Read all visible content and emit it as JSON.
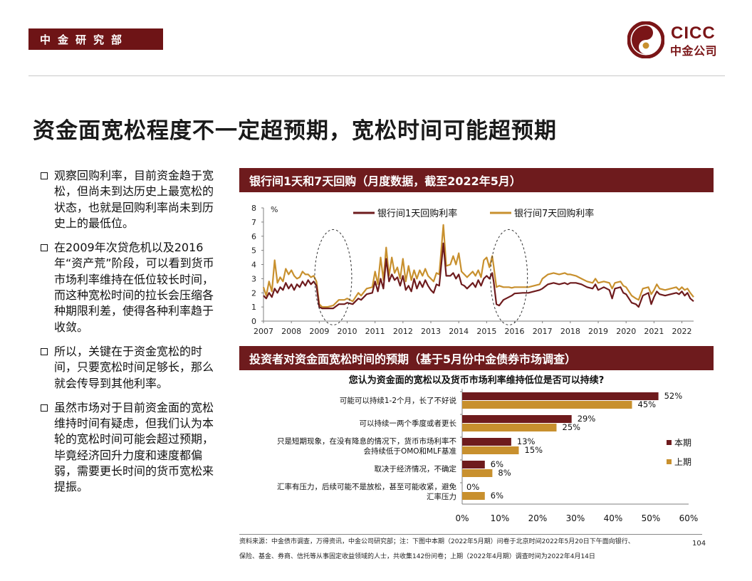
{
  "header": {
    "dept_tag": "中金研究部",
    "logo_en": "CICC",
    "logo_cn": "中金公司"
  },
  "title": "资金面宽松程度不一定超预期，宽松时间可能超预期",
  "bullets": [
    "观察回购利率，目前资金趋于宽松，但尚未到达历史上最宽松的状态，也就是回购利率尚未到历史上的最低位。",
    "在2009年次贷危机以及2016年“资产荒”阶段，可以看到货币市场利率维持在低位较长时间，而这种宽松时间的拉长会压缩各种期限利差，使得各种利率趋于收敛。",
    "所以，关键在于资金宽松的时间，只要宽松时间足够长，那么就会传导到其他利率。",
    "虽然市场对于目前资金面的宽松维持时间有疑虑，但我们认为本轮的宽松时间可能会超过预期，毕竟经济回升力度和速度都偏弱，需要更长时间的货币宽松来提振。"
  ],
  "panel1_title": "银行间1天和7天回购（月度数据，截至2022年5月）",
  "panel2_title": "投资者对资金面宽松时间的预期（基于5月份中金债券市场调查）",
  "chart_data": [
    {
      "type": "line",
      "title": "银行间1天和7天回购（月度数据，截至2022年5月）",
      "ylabel": "%",
      "xlabel": "",
      "ylim": [
        0,
        8
      ],
      "yticks": [
        "0",
        "1",
        "2",
        "3",
        "4",
        "5",
        "6",
        "7",
        "8"
      ],
      "xlim": [
        2007,
        2022.42
      ],
      "xticks": [
        "2007",
        "2008",
        "2009",
        "2010",
        "2011",
        "2012",
        "2013",
        "2014",
        "2015",
        "2016",
        "2017",
        "2018",
        "2019",
        "2020",
        "2021",
        "2022"
      ],
      "legend_position": "top",
      "grid": false,
      "annotations": [
        "dashed ellipse around 2009 low",
        "dashed ellipse around 2016 low"
      ],
      "series": [
        {
          "name": "银行间1天回购利率",
          "color": "#6e1b1d",
          "points": [
            [
              2007.0,
              1.8
            ],
            [
              2007.1,
              1.6
            ],
            [
              2007.2,
              2.0
            ],
            [
              2007.3,
              1.7
            ],
            [
              2007.4,
              2.3
            ],
            [
              2007.5,
              2.0
            ],
            [
              2007.6,
              2.4
            ],
            [
              2007.7,
              2.2
            ],
            [
              2007.8,
              2.7
            ],
            [
              2007.9,
              2.3
            ],
            [
              2008.0,
              2.6
            ],
            [
              2008.1,
              2.2
            ],
            [
              2008.2,
              2.6
            ],
            [
              2008.3,
              2.4
            ],
            [
              2008.4,
              2.8
            ],
            [
              2008.5,
              2.5
            ],
            [
              2008.6,
              2.9
            ],
            [
              2008.7,
              2.6
            ],
            [
              2008.8,
              2.8
            ],
            [
              2008.9,
              2.5
            ],
            [
              2009.0,
              1.0
            ],
            [
              2009.1,
              0.9
            ],
            [
              2009.3,
              0.9
            ],
            [
              2009.5,
              0.9
            ],
            [
              2009.7,
              1.2
            ],
            [
              2009.9,
              1.2
            ],
            [
              2010.0,
              1.3
            ],
            [
              2010.2,
              1.2
            ],
            [
              2010.4,
              1.6
            ],
            [
              2010.5,
              1.5
            ],
            [
              2010.7,
              1.9
            ],
            [
              2010.9,
              2.0
            ],
            [
              2011.0,
              2.8
            ],
            [
              2011.1,
              2.1
            ],
            [
              2011.2,
              3.0
            ],
            [
              2011.3,
              2.3
            ],
            [
              2011.4,
              4.4
            ],
            [
              2011.5,
              2.8
            ],
            [
              2011.6,
              3.3
            ],
            [
              2011.7,
              2.9
            ],
            [
              2011.8,
              3.1
            ],
            [
              2011.9,
              2.5
            ],
            [
              2012.0,
              3.2
            ],
            [
              2012.1,
              2.2
            ],
            [
              2012.2,
              2.5
            ],
            [
              2012.3,
              2.1
            ],
            [
              2012.4,
              3.0
            ],
            [
              2012.5,
              2.3
            ],
            [
              2012.6,
              2.8
            ],
            [
              2012.7,
              2.4
            ],
            [
              2012.8,
              2.9
            ],
            [
              2012.9,
              2.5
            ],
            [
              2013.0,
              2.2
            ],
            [
              2013.1,
              2.0
            ],
            [
              2013.2,
              2.6
            ],
            [
              2013.3,
              2.5
            ],
            [
              2013.45,
              5.5
            ],
            [
              2013.55,
              3.2
            ],
            [
              2013.7,
              3.2
            ],
            [
              2013.8,
              3.4
            ],
            [
              2013.9,
              3.0
            ],
            [
              2014.0,
              3.3
            ],
            [
              2014.1,
              2.6
            ],
            [
              2014.2,
              2.5
            ],
            [
              2014.3,
              2.3
            ],
            [
              2014.5,
              2.7
            ],
            [
              2014.6,
              2.4
            ],
            [
              2014.7,
              2.9
            ],
            [
              2014.8,
              2.5
            ],
            [
              2014.9,
              3.0
            ],
            [
              2015.0,
              3.2
            ],
            [
              2015.1,
              3.0
            ],
            [
              2015.2,
              3.4
            ],
            [
              2015.25,
              2.8
            ],
            [
              2015.35,
              1.2
            ],
            [
              2015.45,
              1.1
            ],
            [
              2015.6,
              1.5
            ],
            [
              2015.8,
              1.7
            ],
            [
              2015.9,
              1.8
            ],
            [
              2016.0,
              1.95
            ],
            [
              2016.3,
              2.0
            ],
            [
              2016.5,
              2.0
            ],
            [
              2016.7,
              2.1
            ],
            [
              2016.9,
              2.2
            ],
            [
              2017.0,
              2.3
            ],
            [
              2017.2,
              2.6
            ],
            [
              2017.4,
              2.7
            ],
            [
              2017.6,
              2.6
            ],
            [
              2017.8,
              2.7
            ],
            [
              2017.9,
              2.6
            ],
            [
              2018.0,
              2.7
            ],
            [
              2018.2,
              2.7
            ],
            [
              2018.4,
              2.6
            ],
            [
              2018.6,
              2.4
            ],
            [
              2018.8,
              2.3
            ],
            [
              2018.9,
              2.6
            ],
            [
              2019.0,
              2.2
            ],
            [
              2019.2,
              2.4
            ],
            [
              2019.4,
              2.2
            ],
            [
              2019.5,
              1.6
            ],
            [
              2019.6,
              2.3
            ],
            [
              2019.8,
              2.4
            ],
            [
              2019.9,
              2.0
            ],
            [
              2020.0,
              1.9
            ],
            [
              2020.2,
              1.3
            ],
            [
              2020.35,
              1.2
            ],
            [
              2020.45,
              1.0
            ],
            [
              2020.6,
              1.8
            ],
            [
              2020.8,
              2.0
            ],
            [
              2020.9,
              1.2
            ],
            [
              2021.0,
              1.7
            ],
            [
              2021.1,
              2.1
            ],
            [
              2021.2,
              1.9
            ],
            [
              2021.4,
              1.8
            ],
            [
              2021.6,
              1.9
            ],
            [
              2021.8,
              2.0
            ],
            [
              2021.9,
              1.9
            ],
            [
              2022.0,
              2.1
            ],
            [
              2022.1,
              1.8
            ],
            [
              2022.2,
              2.0
            ],
            [
              2022.3,
              1.6
            ],
            [
              2022.42,
              1.4
            ]
          ]
        },
        {
          "name": "银行间7天回购利率",
          "color": "#c8902e",
          "points": [
            [
              2007.0,
              2.4
            ],
            [
              2007.1,
              1.8
            ],
            [
              2007.2,
              2.8
            ],
            [
              2007.3,
              2.1
            ],
            [
              2007.4,
              4.3
            ],
            [
              2007.5,
              2.7
            ],
            [
              2007.6,
              3.1
            ],
            [
              2007.7,
              2.8
            ],
            [
              2007.8,
              3.7
            ],
            [
              2007.9,
              3.3
            ],
            [
              2008.0,
              3.6
            ],
            [
              2008.1,
              3.2
            ],
            [
              2008.2,
              3.0
            ],
            [
              2008.3,
              3.1
            ],
            [
              2008.4,
              3.5
            ],
            [
              2008.5,
              3.3
            ],
            [
              2008.6,
              3.3
            ],
            [
              2008.7,
              3.1
            ],
            [
              2008.8,
              3.2
            ],
            [
              2008.9,
              2.8
            ],
            [
              2009.0,
              1.2
            ],
            [
              2009.1,
              1.0
            ],
            [
              2009.3,
              1.0
            ],
            [
              2009.5,
              1.1
            ],
            [
              2009.7,
              1.5
            ],
            [
              2009.9,
              1.5
            ],
            [
              2010.0,
              1.6
            ],
            [
              2010.2,
              1.4
            ],
            [
              2010.4,
              2.0
            ],
            [
              2010.5,
              1.8
            ],
            [
              2010.7,
              2.3
            ],
            [
              2010.9,
              2.4
            ],
            [
              2011.0,
              3.5
            ],
            [
              2011.1,
              2.6
            ],
            [
              2011.2,
              4.5
            ],
            [
              2011.3,
              2.9
            ],
            [
              2011.4,
              5.2
            ],
            [
              2011.5,
              3.2
            ],
            [
              2011.6,
              4.5
            ],
            [
              2011.7,
              3.4
            ],
            [
              2011.8,
              3.8
            ],
            [
              2011.9,
              3.0
            ],
            [
              2012.0,
              4.4
            ],
            [
              2012.1,
              2.8
            ],
            [
              2012.2,
              3.9
            ],
            [
              2012.3,
              2.9
            ],
            [
              2012.4,
              3.6
            ],
            [
              2012.5,
              3.0
            ],
            [
              2012.6,
              3.6
            ],
            [
              2012.7,
              3.2
            ],
            [
              2012.8,
              3.7
            ],
            [
              2012.9,
              3.2
            ],
            [
              2013.0,
              3.0
            ],
            [
              2013.1,
              2.8
            ],
            [
              2013.2,
              3.4
            ],
            [
              2013.3,
              3.3
            ],
            [
              2013.45,
              6.8
            ],
            [
              2013.55,
              3.9
            ],
            [
              2013.7,
              4.0
            ],
            [
              2013.8,
              4.6
            ],
            [
              2013.9,
              4.0
            ],
            [
              2014.0,
              4.8
            ],
            [
              2014.1,
              3.5
            ],
            [
              2014.2,
              3.3
            ],
            [
              2014.3,
              3.1
            ],
            [
              2014.5,
              3.5
            ],
            [
              2014.6,
              3.2
            ],
            [
              2014.7,
              3.6
            ],
            [
              2014.8,
              3.1
            ],
            [
              2014.9,
              4.3
            ],
            [
              2015.0,
              4.5
            ],
            [
              2015.1,
              3.8
            ],
            [
              2015.2,
              4.6
            ],
            [
              2015.25,
              3.9
            ],
            [
              2015.35,
              2.4
            ],
            [
              2015.45,
              2.5
            ],
            [
              2015.6,
              2.4
            ],
            [
              2015.8,
              2.4
            ],
            [
              2015.9,
              2.35
            ],
            [
              2016.0,
              2.4
            ],
            [
              2016.3,
              2.4
            ],
            [
              2016.5,
              2.4
            ],
            [
              2016.7,
              2.5
            ],
            [
              2016.9,
              2.6
            ],
            [
              2017.0,
              3.0
            ],
            [
              2017.2,
              3.3
            ],
            [
              2017.4,
              3.4
            ],
            [
              2017.6,
              3.3
            ],
            [
              2017.8,
              3.4
            ],
            [
              2017.9,
              3.3
            ],
            [
              2018.0,
              3.3
            ],
            [
              2018.2,
              3.2
            ],
            [
              2018.4,
              3.0
            ],
            [
              2018.6,
              2.8
            ],
            [
              2018.8,
              2.7
            ],
            [
              2018.9,
              3.0
            ],
            [
              2019.0,
              2.7
            ],
            [
              2019.2,
              2.8
            ],
            [
              2019.4,
              2.7
            ],
            [
              2019.5,
              2.3
            ],
            [
              2019.6,
              2.7
            ],
            [
              2019.8,
              2.8
            ],
            [
              2019.9,
              2.5
            ],
            [
              2020.0,
              2.4
            ],
            [
              2020.2,
              1.8
            ],
            [
              2020.35,
              1.6
            ],
            [
              2020.45,
              1.5
            ],
            [
              2020.6,
              2.3
            ],
            [
              2020.8,
              2.4
            ],
            [
              2020.9,
              1.9
            ],
            [
              2021.0,
              2.2
            ],
            [
              2021.1,
              2.6
            ],
            [
              2021.2,
              2.3
            ],
            [
              2021.4,
              2.2
            ],
            [
              2021.6,
              2.3
            ],
            [
              2021.8,
              2.4
            ],
            [
              2021.9,
              2.2
            ],
            [
              2022.0,
              2.4
            ],
            [
              2022.1,
              2.2
            ],
            [
              2022.2,
              2.3
            ],
            [
              2022.3,
              2.0
            ],
            [
              2022.42,
              1.7
            ]
          ]
        }
      ]
    },
    {
      "type": "bar",
      "orientation": "horizontal",
      "title": "您认为资金面的宽松以及货币市场利率维持低位是否可以持续?",
      "categories": [
        "可能可以持续1-2个月，长了不好说",
        "可以持续一两个季度或者更长",
        "只是短期现象，在没有降息的情况下，货币市场利率不会持续低于OMO和MLF基准",
        "取决于经济情况，不确定",
        "汇率有压力，后续可能不是放松，甚至可能收紧，避免汇率压力"
      ],
      "category_lines": [
        [
          "可能可以持续1-2个月，长了不好说"
        ],
        [
          "可以持续一两个季度或者更长"
        ],
        [
          "只是短期现象，在没有降息的情况下，货币市场利率不",
          "会持续低于OMO和MLF基准"
        ],
        [
          "取决于经济情况，不确定"
        ],
        [
          "汇率有压力，后续可能不是放松，甚至可能收紧，避免",
          "汇率压力"
        ]
      ],
      "series": [
        {
          "name": "本期",
          "color": "#6e1b1d",
          "values": [
            52,
            29,
            13,
            6,
            0
          ]
        },
        {
          "name": "上期",
          "color": "#c8902e",
          "values": [
            45,
            25,
            15,
            8,
            6
          ]
        }
      ],
      "xlim": [
        0,
        60
      ],
      "xticks": [
        "0%",
        "10%",
        "20%",
        "30%",
        "40%",
        "50%",
        "60%"
      ],
      "value_suffix": "%",
      "legend_position": "right",
      "grid": false
    }
  ],
  "source": [
    "资料来源：中金债市调查，万得资讯，中金公司研究部；注：下图中本期（2022年5月期）问卷于北京时间2022年5月20日下午面向银行、",
    "保险、基金、券商、信托等从事固定收益领域的人士，共收集142份问卷；上期（2022年4月期）调查时间为2022年4月14日"
  ],
  "page_number": "104"
}
